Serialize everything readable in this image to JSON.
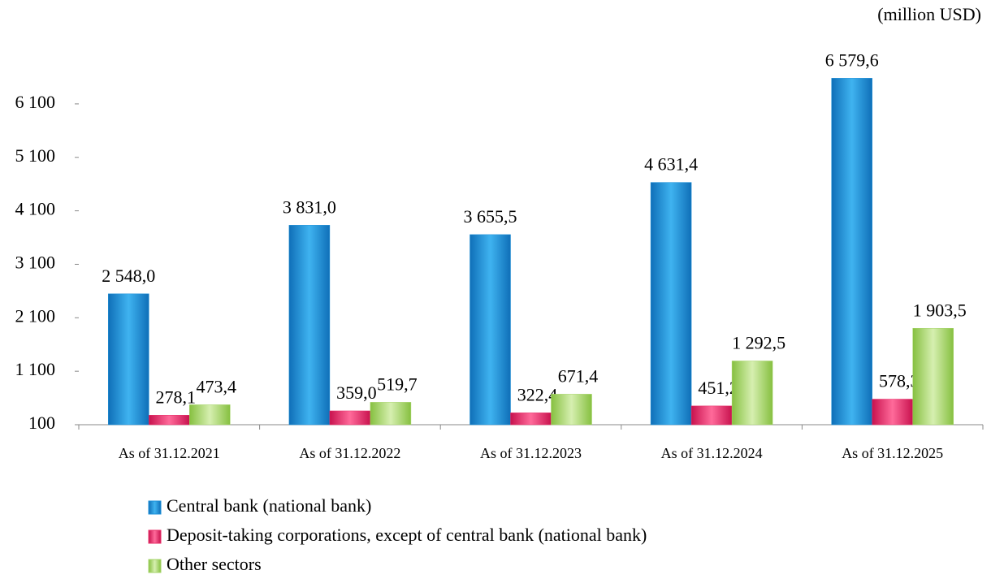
{
  "chart_data": {
    "type": "bar",
    "unit_label": "(million USD)",
    "categories": [
      "As of 31.12.2021",
      "As of 31.12.2022",
      "As of 31.12.2023",
      "As of 31.12.2024",
      "As of 31.12.2025"
    ],
    "series": [
      {
        "name": "Central bank (national bank)",
        "color": "#1a8fd8",
        "values": [
          2548.0,
          3831.0,
          3655.5,
          4631.4,
          6579.6
        ],
        "value_labels": [
          "2 548,0",
          "3 831,0",
          "3 655,5",
          "4 631,4",
          "6 579,6"
        ]
      },
      {
        "name": "Deposit-taking corporations, except of central bank (national bank)",
        "color": "#e8306a",
        "values": [
          278.1,
          359.0,
          322.4,
          451.2,
          578.3
        ],
        "value_labels": [
          "278,1",
          "359,0",
          "322,4",
          "451,2",
          "578,3"
        ]
      },
      {
        "name": "Other sectors",
        "color": "#a6d46a",
        "values": [
          473.4,
          519.7,
          671.4,
          1292.5,
          1903.5
        ],
        "value_labels": [
          "473,4",
          "519,7",
          "671,4",
          "1 292,5",
          "1 903,5"
        ]
      }
    ],
    "ylim": [
      100,
      6600
    ],
    "yticks": [
      100,
      {
        "value": 1100,
        "label": "1 100"
      },
      {
        "value": 2100,
        "label": "2 100"
      },
      {
        "value": 3100,
        "label": "3 100"
      },
      {
        "value": 4100,
        "label": "4 100"
      },
      {
        "value": 5100,
        "label": "5 100"
      },
      {
        "value": 6100,
        "label": "6 100"
      }
    ],
    "grid": false,
    "legend": "bottom"
  }
}
